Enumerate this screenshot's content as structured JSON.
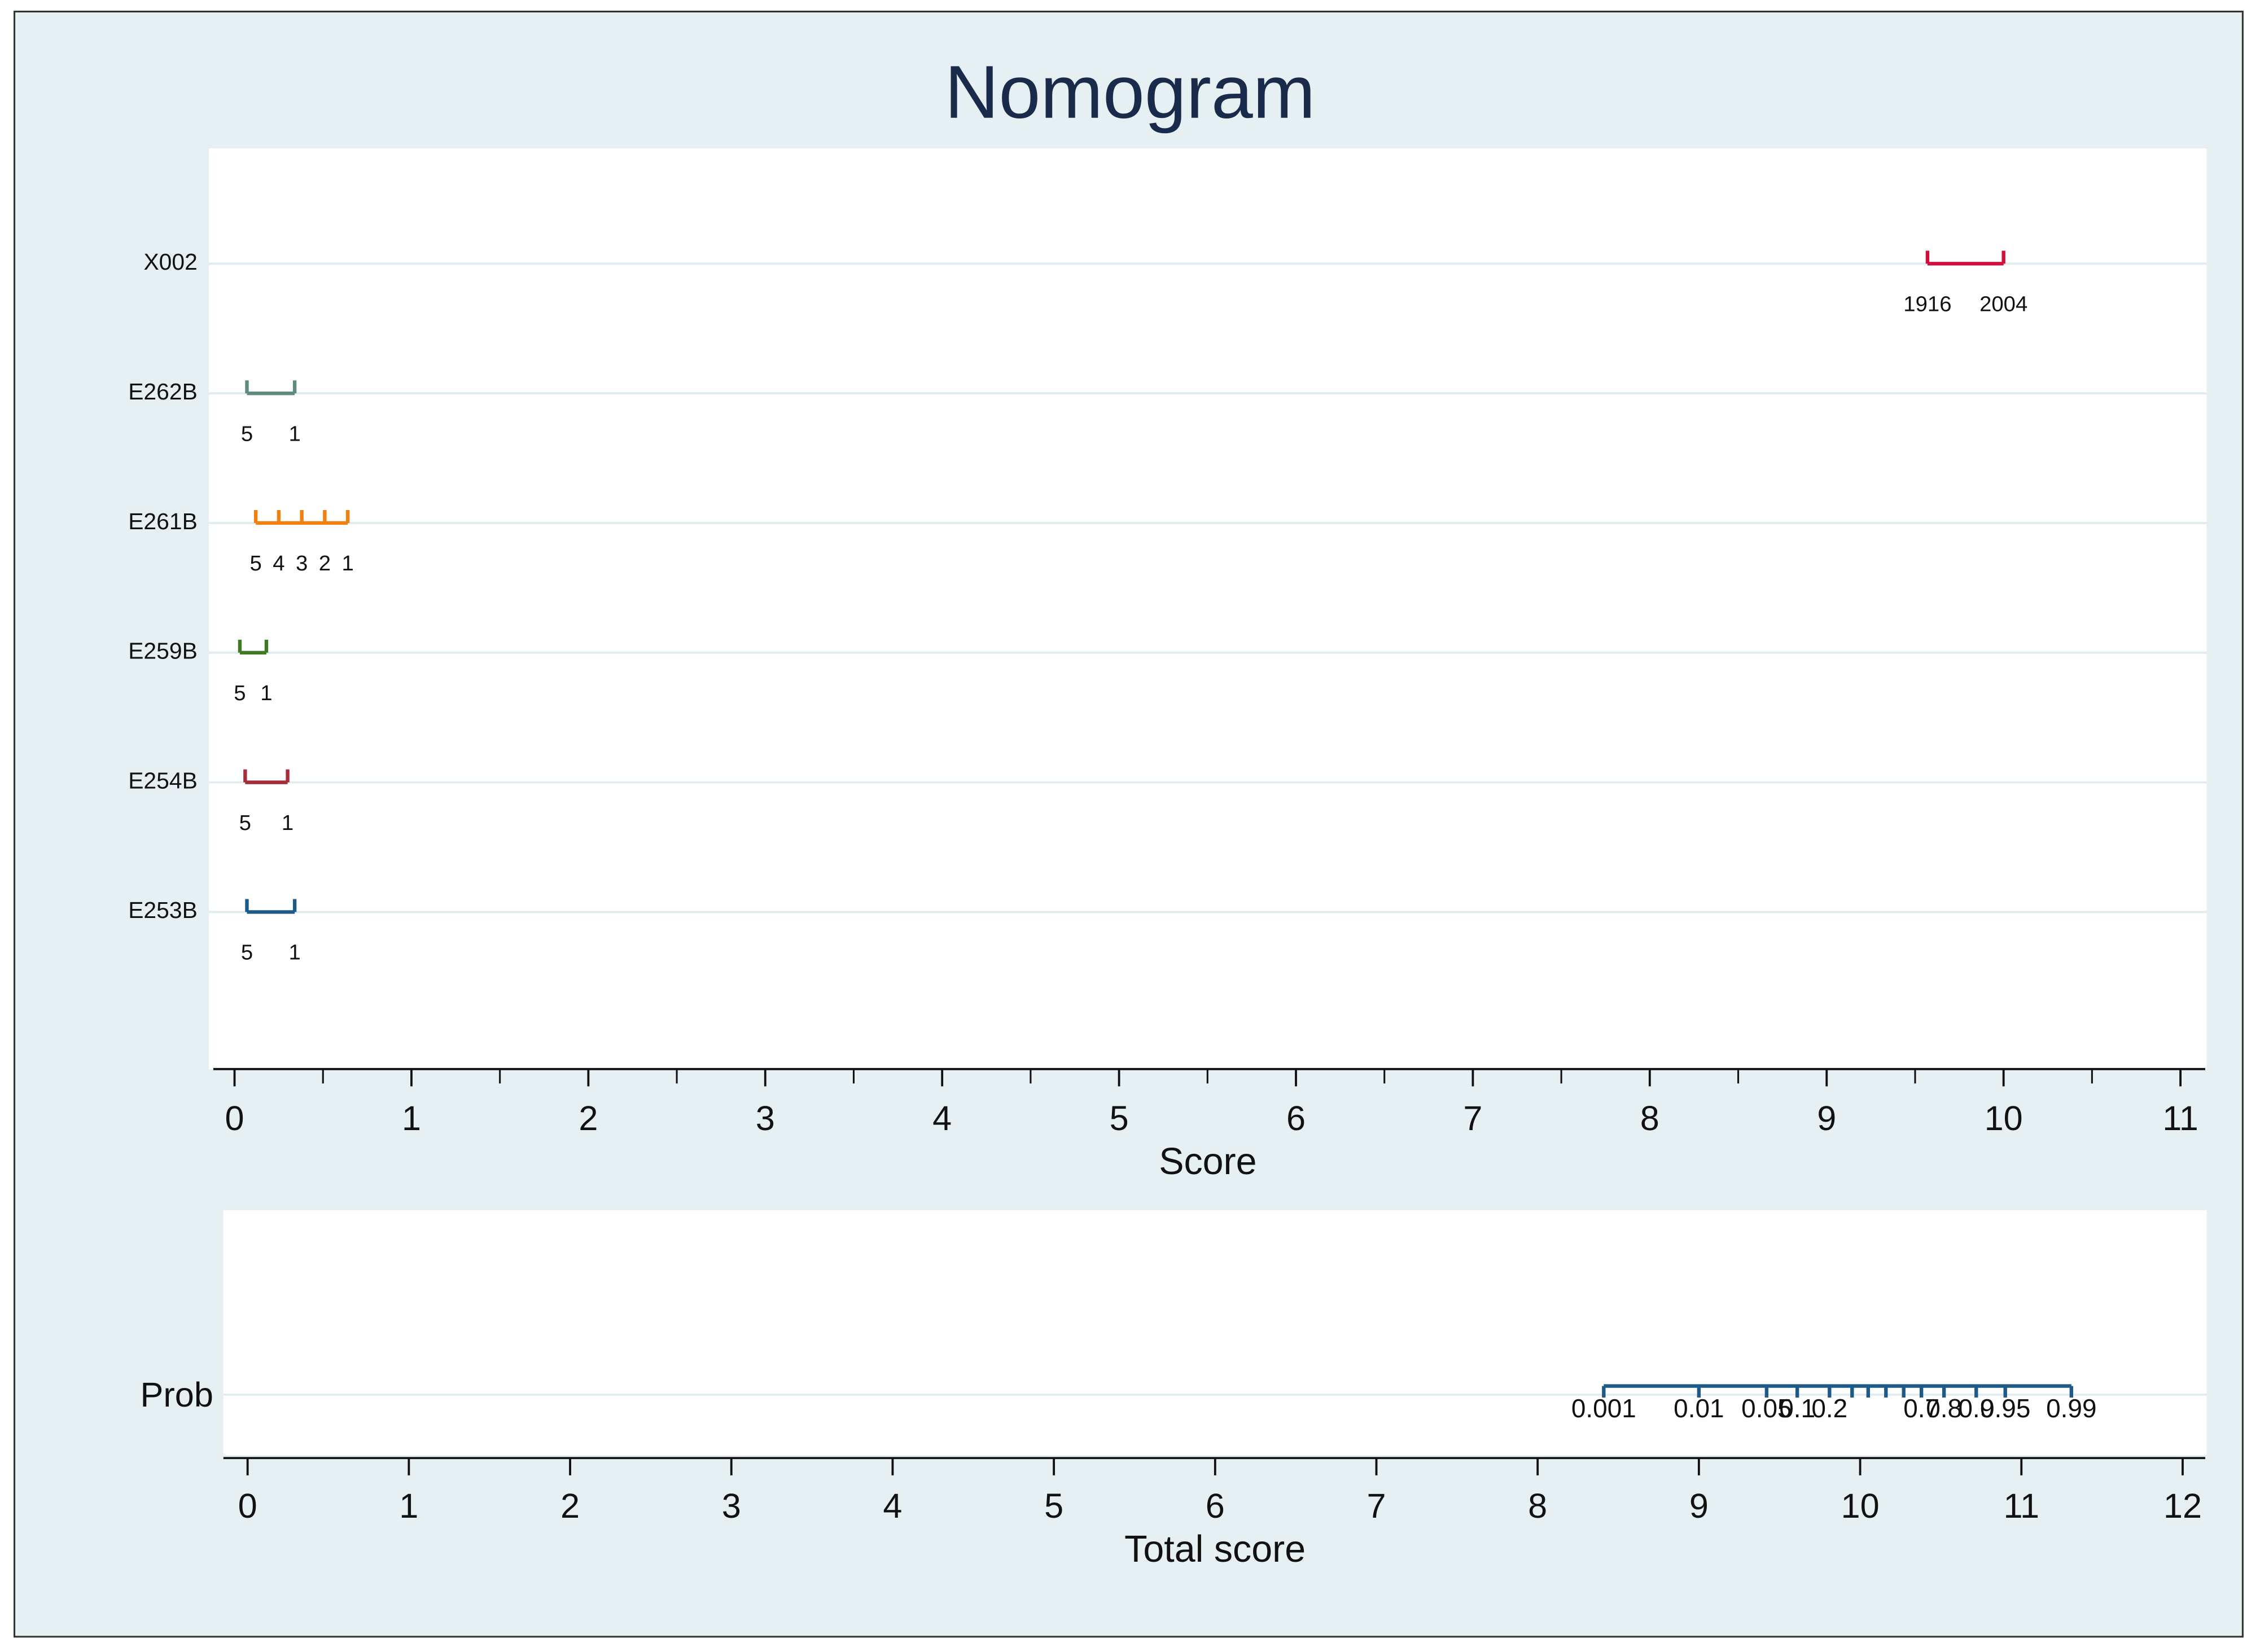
{
  "chart_data": {
    "type": "nomogram",
    "title": "Nomogram",
    "rows": [
      {
        "name": "X002",
        "color": "#d0103a",
        "points": [
          9.57,
          10.0
        ],
        "labels": [
          1916,
          2004
        ]
      },
      {
        "name": "E262B",
        "color": "#5f8a80",
        "points": [
          0.07,
          0.34
        ],
        "labels": [
          5,
          1
        ]
      },
      {
        "name": "E261B",
        "color": "#f08010",
        "points": [
          0.12,
          0.25,
          0.38,
          0.51,
          0.64
        ],
        "labels": [
          5,
          4,
          3,
          2,
          1
        ]
      },
      {
        "name": "E259B",
        "color": "#3f7a22",
        "points": [
          0.03,
          0.18
        ],
        "labels": [
          5,
          1
        ]
      },
      {
        "name": "E254B",
        "color": "#a82d3c",
        "points": [
          0.06,
          0.3
        ],
        "labels": [
          5,
          1
        ]
      },
      {
        "name": "E253B",
        "color": "#1d5a88",
        "points": [
          0.07,
          0.34
        ],
        "labels": [
          5,
          1
        ]
      }
    ],
    "xlabel": "Score",
    "xlim": [
      -0.12,
      11.14
    ],
    "xticks": [
      0,
      1,
      2,
      3,
      4,
      5,
      6,
      7,
      8,
      9,
      10,
      11
    ],
    "xminorticks": [
      0.5,
      1.5,
      2.5,
      3.5,
      4.5,
      5.5,
      6.5,
      7.5,
      8.5,
      9.5,
      10.5
    ],
    "prob": {
      "name": "Prob",
      "color": "#1d5a88",
      "points": [
        8.41,
        9.0,
        9.42,
        9.61,
        9.81,
        9.95,
        10.05,
        10.16,
        10.27,
        10.38,
        10.52,
        10.72,
        10.9,
        11.31
      ],
      "labels": [
        0.001,
        0.01,
        0.05,
        0.1,
        0.2,
        null,
        null,
        null,
        null,
        0.7,
        0.8,
        0.9,
        0.95,
        0.99
      ]
    },
    "total_xlabel": "Total score",
    "total_xlim": [
      -0.15,
      12.14
    ],
    "total_xticks": [
      0,
      1,
      2,
      3,
      4,
      5,
      6,
      7,
      8,
      9,
      10,
      11,
      12
    ]
  }
}
